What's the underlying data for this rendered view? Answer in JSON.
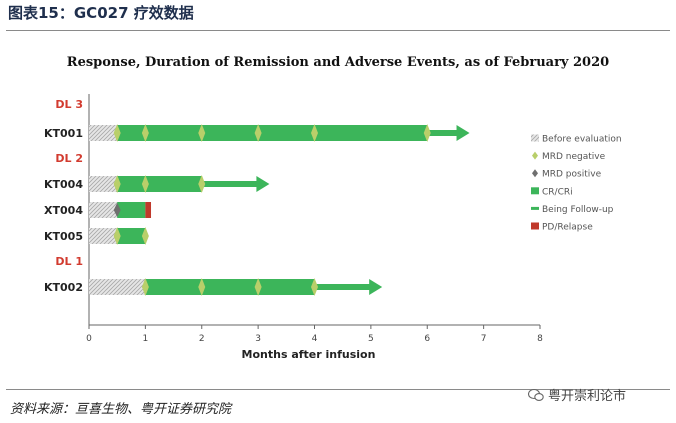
{
  "header": {
    "figure_title": "图表15：GC027 疗效数据"
  },
  "footer": {
    "source": "资料来源：亘喜生物、粤开证券研究院",
    "watermark": "粤开崇利论市"
  },
  "colors": {
    "header_text": "#1f2f4d",
    "cr_cri": "#3cb55a",
    "mrd_negative": "#b9cf6a",
    "mrd_positive": "#6f6f6f",
    "pd_relapse": "#c0392b",
    "follow_up_arrow": "#3cb55a",
    "dose_label": "#d23b2f",
    "before_eval": "#cfcfcf"
  },
  "chart_data": {
    "type": "swimmer",
    "title": "Response, Duration of Remission and Adverse Events, as of February 2020",
    "xlabel": "Months after infusion",
    "ylabel": "",
    "xlim": [
      0,
      8
    ],
    "xticks": [
      "0",
      "1",
      "2",
      "3",
      "4",
      "5",
      "6",
      "7",
      "8"
    ],
    "grid": false,
    "legend_position": "right",
    "legend": [
      {
        "key": "before",
        "label": "Before evaluation"
      },
      {
        "key": "mrd_neg",
        "label": "MRD negative"
      },
      {
        "key": "mrd_pos",
        "label": "MRD positive"
      },
      {
        "key": "cr",
        "label": "CR/CRi"
      },
      {
        "key": "follow",
        "label": "Being Follow-up"
      },
      {
        "key": "pd",
        "label": "PD/Relapse"
      }
    ],
    "rows": [
      {
        "kind": "group",
        "label": "DL 3"
      },
      {
        "kind": "patient",
        "label": "KT001",
        "before_end": 0.5,
        "cr_end": 6.0,
        "mrd_negative": [
          0.5,
          1.0,
          2.0,
          3.0,
          4.0,
          6.0
        ],
        "mrd_positive": [],
        "pd": null,
        "follow_up_end": 6.75
      },
      {
        "kind": "group",
        "label": "DL 2"
      },
      {
        "kind": "patient",
        "label": "KT004",
        "before_end": 0.5,
        "cr_end": 2.0,
        "mrd_negative": [
          0.5,
          1.0,
          2.0
        ],
        "mrd_positive": [],
        "pd": null,
        "follow_up_end": 3.2
      },
      {
        "kind": "patient",
        "label": "XT004",
        "before_end": 0.5,
        "cr_end": 1.0,
        "mrd_negative": [],
        "mrd_positive": [
          0.5
        ],
        "pd": [
          1.0,
          1.1
        ],
        "follow_up_end": null
      },
      {
        "kind": "patient",
        "label": "KT005",
        "before_end": 0.5,
        "cr_end": 1.0,
        "mrd_negative": [
          0.5,
          1.0
        ],
        "mrd_positive": [],
        "pd": null,
        "follow_up_end": null
      },
      {
        "kind": "group",
        "label": "DL 1"
      },
      {
        "kind": "patient",
        "label": "KT002",
        "before_end": 1.0,
        "cr_end": 4.0,
        "mrd_negative": [
          1.0,
          2.0,
          3.0,
          4.0
        ],
        "mrd_positive": [],
        "pd": null,
        "follow_up_end": 5.2
      }
    ]
  }
}
